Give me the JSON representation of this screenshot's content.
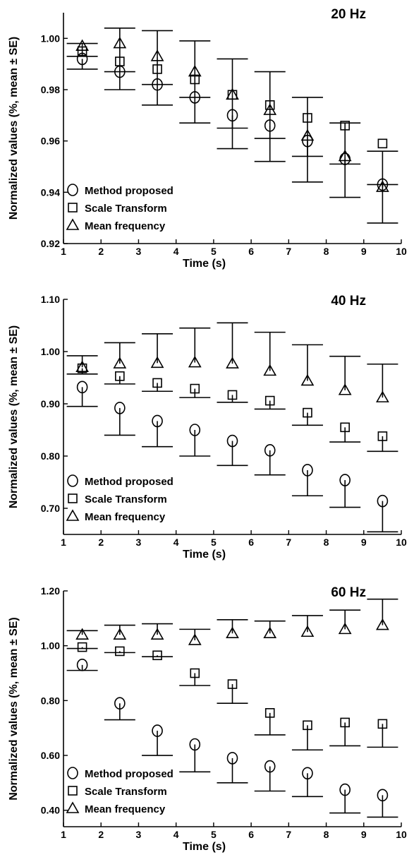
{
  "chart_data": [
    {
      "type": "scatter",
      "title": "20 Hz",
      "xlabel": "Time (s)",
      "ylabel": "Normalized values (%, mean ± SE)",
      "xlim": [
        1,
        10
      ],
      "ylim": [
        0.92,
        1.01
      ],
      "x_ticks": [
        "1",
        "2",
        "3",
        "4",
        "5",
        "6",
        "7",
        "8",
        "9",
        "10"
      ],
      "y_ticks": [
        "0.92",
        "0.94",
        "0.96",
        "0.98",
        "1.00"
      ],
      "y_tick_values": [
        0.92,
        0.94,
        0.96,
        0.98,
        1.0
      ],
      "x": [
        1.5,
        2.5,
        3.5,
        4.5,
        5.5,
        6.5,
        7.5,
        8.5,
        9.5
      ],
      "series": [
        {
          "name": "Method proposed",
          "marker": "circle",
          "values": [
            0.992,
            0.987,
            0.982,
            0.977,
            0.97,
            0.966,
            0.96,
            0.953,
            0.943
          ],
          "err_low": [
            0.988,
            0.98,
            0.974,
            0.967,
            0.957,
            0.952,
            0.944,
            0.938,
            0.928
          ],
          "err_high": [
            null,
            null,
            null,
            null,
            null,
            null,
            null,
            null,
            null
          ]
        },
        {
          "name": "Scale Transform",
          "marker": "square",
          "values": [
            0.995,
            0.991,
            0.988,
            0.984,
            0.978,
            0.974,
            0.969,
            0.966,
            0.959
          ],
          "err_low": [
            null,
            null,
            null,
            null,
            null,
            null,
            null,
            null,
            null
          ],
          "err_high": [
            null,
            null,
            null,
            null,
            null,
            null,
            null,
            null,
            null
          ]
        },
        {
          "name": "Mean frequency",
          "marker": "triangle",
          "values": [
            0.997,
            0.998,
            0.993,
            0.987,
            0.978,
            0.972,
            0.962,
            0.954,
            0.942
          ],
          "err_low": [
            0.993,
            0.987,
            0.982,
            0.977,
            0.965,
            0.961,
            0.954,
            0.951,
            0.943
          ],
          "err_high": [
            0.998,
            1.004,
            1.003,
            0.999,
            0.992,
            0.987,
            0.977,
            0.967,
            0.956
          ]
        }
      ],
      "legend": "bottom-left",
      "grid": false
    },
    {
      "type": "scatter",
      "title": "40 Hz",
      "xlabel": "Time (s)",
      "ylabel": "Normalized values (%, mean ± SE)",
      "xlim": [
        1,
        10
      ],
      "ylim": [
        0.65,
        1.1
      ],
      "x_ticks": [
        "1",
        "2",
        "3",
        "4",
        "5",
        "6",
        "7",
        "8",
        "9",
        "10"
      ],
      "y_ticks": [
        "0.70",
        "0.80",
        "0.90",
        "1.00",
        "1.10"
      ],
      "y_tick_values": [
        0.7,
        0.8,
        0.9,
        1.0,
        1.1
      ],
      "x": [
        1.5,
        2.5,
        3.5,
        4.5,
        5.5,
        6.5,
        7.5,
        8.5,
        9.5
      ],
      "series": [
        {
          "name": "Method proposed",
          "marker": "circle",
          "values": [
            0.932,
            0.892,
            0.867,
            0.85,
            0.829,
            0.811,
            0.773,
            0.754,
            0.714
          ],
          "err_low": [
            0.895,
            0.84,
            0.818,
            0.8,
            0.782,
            0.764,
            0.724,
            0.702,
            0.655
          ],
          "err_high": [
            null,
            null,
            null,
            null,
            null,
            null,
            null,
            null,
            null
          ]
        },
        {
          "name": "Scale Transform",
          "marker": "square",
          "values": [
            0.968,
            0.953,
            0.94,
            0.929,
            0.917,
            0.906,
            0.883,
            0.855,
            0.838
          ],
          "err_low": [
            0.957,
            0.938,
            0.924,
            0.912,
            0.903,
            0.89,
            0.859,
            0.827,
            0.809
          ],
          "err_high": [
            null,
            null,
            null,
            null,
            null,
            null,
            null,
            null,
            null
          ]
        },
        {
          "name": "Mean frequency",
          "marker": "triangle",
          "values": [
            0.97,
            0.977,
            0.978,
            0.979,
            0.977,
            0.963,
            0.944,
            0.926,
            0.912
          ],
          "err_low": [
            null,
            null,
            null,
            null,
            null,
            null,
            null,
            null,
            null
          ],
          "err_high": [
            0.992,
            1.017,
            1.034,
            1.045,
            1.055,
            1.037,
            1.013,
            0.991,
            0.976
          ]
        }
      ],
      "legend": "bottom-left",
      "grid": false
    },
    {
      "type": "scatter",
      "title": "60 Hz",
      "xlabel": "Time (s)",
      "ylabel": "Normalized values (%, mean ± SE)",
      "xlim": [
        1,
        10
      ],
      "ylim": [
        0.34,
        1.2
      ],
      "x_ticks": [
        "1",
        "2",
        "3",
        "4",
        "5",
        "6",
        "7",
        "8",
        "9",
        "10"
      ],
      "y_ticks": [
        "0.40",
        "0.60",
        "0.80",
        "1.00",
        "1.20"
      ],
      "y_tick_values": [
        0.4,
        0.6,
        0.8,
        1.0,
        1.2
      ],
      "x": [
        1.5,
        2.5,
        3.5,
        4.5,
        5.5,
        6.5,
        7.5,
        8.5,
        9.5
      ],
      "series": [
        {
          "name": "Method proposed",
          "marker": "circle",
          "values": [
            0.93,
            0.79,
            0.69,
            0.64,
            0.59,
            0.56,
            0.535,
            0.475,
            0.455
          ],
          "err_low": [
            0.91,
            0.73,
            0.6,
            0.54,
            0.5,
            0.47,
            0.45,
            0.39,
            0.375
          ],
          "err_high": [
            null,
            null,
            null,
            null,
            null,
            null,
            null,
            null,
            null
          ]
        },
        {
          "name": "Scale Transform",
          "marker": "square",
          "values": [
            0.995,
            0.98,
            0.965,
            0.9,
            0.86,
            0.755,
            0.71,
            0.72,
            0.715
          ],
          "err_low": [
            0.99,
            0.975,
            0.96,
            0.855,
            0.79,
            0.675,
            0.62,
            0.635,
            0.63
          ],
          "err_high": [
            null,
            null,
            null,
            null,
            null,
            null,
            null,
            null,
            null
          ]
        },
        {
          "name": "Mean frequency",
          "marker": "triangle",
          "values": [
            1.04,
            1.04,
            1.04,
            1.02,
            1.045,
            1.045,
            1.05,
            1.06,
            1.075
          ],
          "err_low": [
            null,
            null,
            null,
            null,
            null,
            null,
            null,
            null,
            null
          ],
          "err_high": [
            1.055,
            1.075,
            1.08,
            1.06,
            1.095,
            1.09,
            1.11,
            1.13,
            1.17
          ]
        }
      ],
      "legend": "bottom-left",
      "grid": false
    }
  ]
}
